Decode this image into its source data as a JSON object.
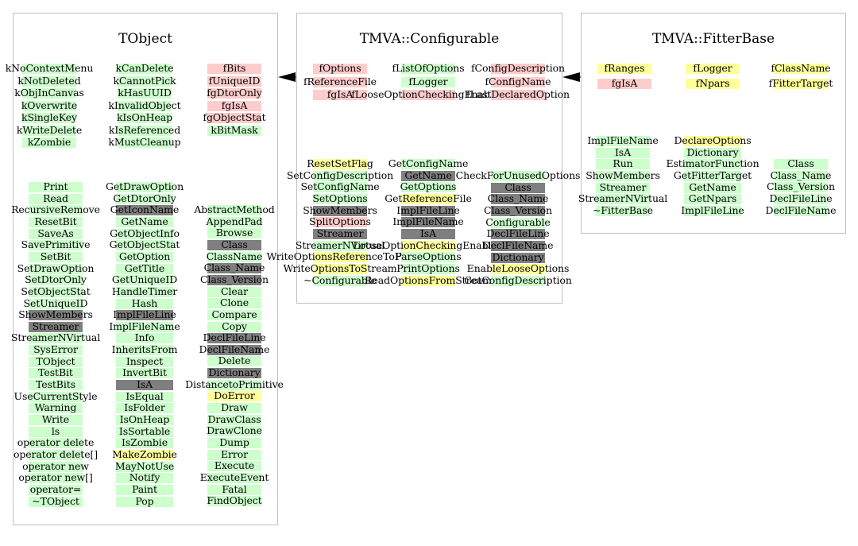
{
  "colors": {
    "green": "#ccffcc",
    "pink": "#ffcccc",
    "yellow": "#ffff99",
    "gray": "#7f7f7f",
    "border": "#c0c0c0"
  },
  "classes": {
    "tobject": {
      "title": "TObject",
      "cols": [
        [
          "kNoContextMenu",
          "kNotDeleted",
          "kObjInCanvas",
          "kOverwrite",
          "kSingleKey",
          "kWriteDelete",
          "kZombie"
        ],
        [
          "kCanDelete",
          "kCannotPick",
          "kHasUUID",
          "kInvalidObject",
          "kIsOnHeap",
          "kIsReferenced",
          "kMustCleanup"
        ],
        [
          "fBits",
          "fUniqueID",
          "fgDtorOnly",
          "fgIsA",
          "fgObjectStat",
          "kBitMask"
        ],
        [
          "Print",
          "Read",
          "RecursiveRemove",
          "ResetBit",
          "SaveAs",
          "SavePrimitive",
          "SetBit",
          "SetDrawOption",
          "SetDtorOnly",
          "SetObjectStat",
          "SetUniqueID",
          "ShowMembers",
          "Streamer",
          "StreamerNVirtual",
          "SysError",
          "TObject",
          "TestBit",
          "TestBits",
          "UseCurrentStyle",
          "Warning",
          "Write",
          "ls",
          "operator delete",
          "operator delete[]",
          "operator new",
          "operator new[]",
          "operator=",
          "~TObject"
        ],
        [
          "GetDrawOption",
          "GetDtorOnly",
          "GetIconName",
          "GetName",
          "GetObjectInfo",
          "GetObjectStat",
          "GetOption",
          "GetTitle",
          "GetUniqueID",
          "HandleTimer",
          "Hash",
          "ImplFileLine",
          "ImplFileName",
          "Info",
          "InheritsFrom",
          "Inspect",
          "InvertBit",
          "IsA",
          "IsEqual",
          "IsFolder",
          "IsOnHeap",
          "IsSortable",
          "IsZombie",
          "MakeZombie",
          "MayNotUse",
          "Notify",
          "Paint",
          "Pop"
        ],
        [
          "AbstractMethod",
          "AppendPad",
          "Browse",
          "Class",
          "ClassName",
          "Class_Name",
          "Class_Version",
          "Clear",
          "Clone",
          "Compare",
          "Copy",
          "DeclFileLine",
          "DeclFileName",
          "Delete",
          "Dictionary",
          "DistancetoPrimitive",
          "DoError",
          "Draw",
          "DrawClass",
          "DrawClone",
          "Dump",
          "Error",
          "Execute",
          "ExecuteEvent",
          "Fatal",
          "FindObject"
        ]
      ]
    },
    "configurable": {
      "title": "TMVA::Configurable",
      "cols": [
        [
          "fOptions",
          "fReferenceFile",
          "fgIsA"
        ],
        [
          "fListOfOptions",
          "fLogger",
          "fLooseOptionCheckingEnabled"
        ],
        [
          "fConfigDescription",
          "fConfigName",
          "fLastDeclaredOption"
        ],
        [
          "ResetSetFlag",
          "SetConfigDescription",
          "SetConfigName",
          "SetOptions",
          "ShowMembers",
          "SplitOptions",
          "Streamer",
          "StreamerNVirtual",
          "WriteOptionsReferenceToFile",
          "WriteOptionsToStream",
          "~Configurable"
        ],
        [
          "GetConfigName",
          "GetName",
          "GetOptions",
          "GetReferenceFile",
          "ImplFileLine",
          "ImplFileName",
          "IsA",
          "LooseOptionCheckingEnabled",
          "ParseOptions",
          "PrintOptions",
          "ReadOptionsFromStream"
        ],
        [
          "CheckForUnusedOptions",
          "Class",
          "Class_Name",
          "Class_Version",
          "Configurable",
          "DeclFileLine",
          "DeclFileName",
          "Dictionary",
          "EnableLooseOptions",
          "GetConfigDescription"
        ]
      ]
    },
    "fitterbase": {
      "title": "TMVA::FitterBase",
      "cols": [
        [
          "fRanges",
          "fgIsA"
        ],
        [
          "fLogger",
          "fNpars"
        ],
        [
          "fClassName",
          "fFitterTarget"
        ],
        [
          "ImplFileName",
          "IsA",
          "Run",
          "ShowMembers",
          "Streamer",
          "StreamerNVirtual",
          "~FitterBase"
        ],
        [
          "DeclareOptions",
          "Dictionary",
          "EstimatorFunction",
          "GetFitterTarget",
          "GetName",
          "GetNpars",
          "ImplFileLine"
        ],
        [
          "Class",
          "Class_Name",
          "Class_Version",
          "DeclFileLine",
          "DeclFileName"
        ]
      ]
    }
  }
}
